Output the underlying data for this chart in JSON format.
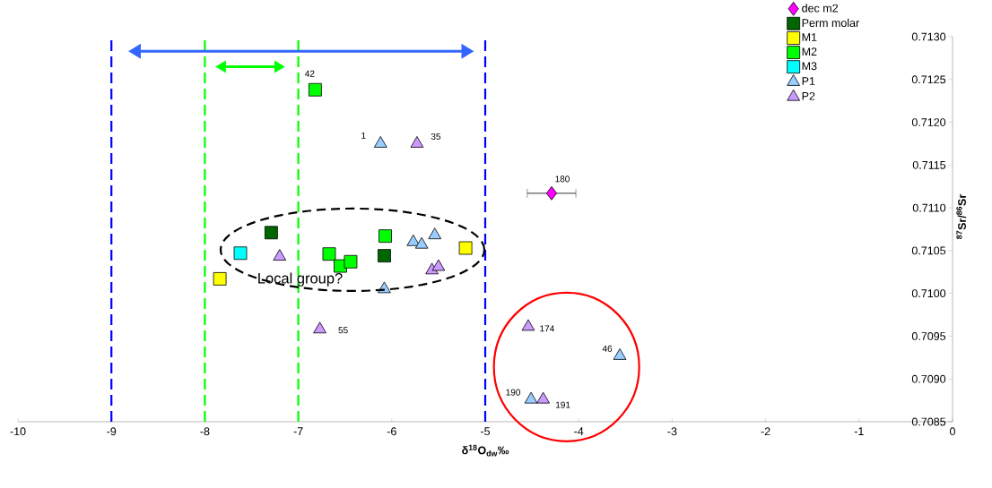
{
  "chart_data": {
    "type": "scatter",
    "xlabel": "δ$^{18}$O$_{dw}$‰",
    "ylabel": "$^{87}$Sr/$^{86}$Sr",
    "xlim": [
      -10,
      0
    ],
    "xticks": [
      -10,
      -9,
      -8,
      -7,
      -6,
      -5,
      -4,
      -3,
      -2,
      -1,
      0
    ],
    "ylim": [
      0.7085,
      0.713
    ],
    "yticks": [
      {
        "value": 0.7085,
        "label": "0.7085"
      },
      {
        "value": 0.709,
        "label": "0.7090"
      },
      {
        "value": 0.7095,
        "label": "0.7095"
      },
      {
        "value": 0.71,
        "label": "0.7100"
      },
      {
        "value": 0.7105,
        "label": "0.7105"
      },
      {
        "value": 0.711,
        "label": "0.7110"
      },
      {
        "value": 0.7115,
        "label": "0.7115"
      },
      {
        "value": 0.712,
        "label": "0.7120"
      },
      {
        "value": 0.7125,
        "label": "0.7125"
      },
      {
        "value": 0.713,
        "label": "0.7130"
      }
    ],
    "legend": "top right",
    "series": [
      {
        "name": "dec m2",
        "color": "#ff00ff",
        "marker": "diamond",
        "x": [
          -4.29
        ],
        "values": [
          0.71117
        ],
        "xerrors": [
          0.26
        ]
      },
      {
        "name": "Perm molar",
        "color": "#006600",
        "marker": "square",
        "x": [
          -7.29,
          -6.08
        ],
        "values": [
          0.71071,
          0.71044
        ]
      },
      {
        "name": "M1",
        "color": "#ffff00",
        "marker": "square",
        "x": [
          -7.84,
          -5.21
        ],
        "values": [
          0.71017,
          0.71053
        ]
      },
      {
        "name": "M2",
        "color": "#00ff00",
        "marker": "square",
        "x": [
          -6.82,
          -6.67,
          -6.55,
          -6.44,
          -6.07
        ],
        "values": [
          0.71238,
          0.71046,
          0.71032,
          0.71037,
          0.71067
        ]
      },
      {
        "name": "M3",
        "color": "#00ffff",
        "marker": "square",
        "x": [
          -7.62
        ],
        "values": [
          0.71047
        ]
      },
      {
        "name": "P1",
        "color": "#99ccff",
        "marker": "triangle",
        "x": [
          -6.12,
          -5.77,
          -5.68,
          -5.54,
          -6.08,
          -3.56,
          -4.51
        ],
        "values": [
          0.71175,
          0.7106,
          0.71057,
          0.71068,
          0.71005,
          0.70927,
          0.70876
        ]
      },
      {
        "name": "P2",
        "color": "#cc99ff",
        "marker": "triangle",
        "x": [
          -5.73,
          -7.2,
          -5.57,
          -5.5,
          -6.77,
          -4.54,
          -4.38
        ],
        "values": [
          0.71175,
          0.71043,
          0.71027,
          0.71031,
          0.70958,
          0.70961,
          0.70876
        ]
      }
    ],
    "ref_lines": [
      {
        "axis": "x",
        "value": -9,
        "color": "#0000ff",
        "line_style": "dashed"
      },
      {
        "axis": "x",
        "value": -8,
        "color": "#00ff00",
        "line_style": "dashed"
      },
      {
        "axis": "x",
        "value": -7,
        "color": "#00ff00",
        "line_style": "dashed"
      },
      {
        "axis": "x",
        "value": -5,
        "color": "#0000ff",
        "line_style": "dashed"
      }
    ],
    "annotations": [
      {
        "text": "42",
        "x": -6.82,
        "y": 0.71238
      },
      {
        "text": "1",
        "x": -6.12,
        "y": 0.71175
      },
      {
        "text": "35",
        "x": -5.73,
        "y": 0.71175
      },
      {
        "text": "180",
        "x": -4.29,
        "y": 0.71117
      },
      {
        "text": "55",
        "x": -6.77,
        "y": 0.70958
      },
      {
        "text": "174",
        "x": -4.54,
        "y": 0.70961
      },
      {
        "text": "46",
        "x": -3.56,
        "y": 0.70927
      },
      {
        "text": "190",
        "x": -4.51,
        "y": 0.70876
      },
      {
        "text": "191",
        "x": -4.38,
        "y": 0.70876
      },
      {
        "text": "Local group?",
        "x": -7.02,
        "y": 0.71012
      }
    ]
  }
}
